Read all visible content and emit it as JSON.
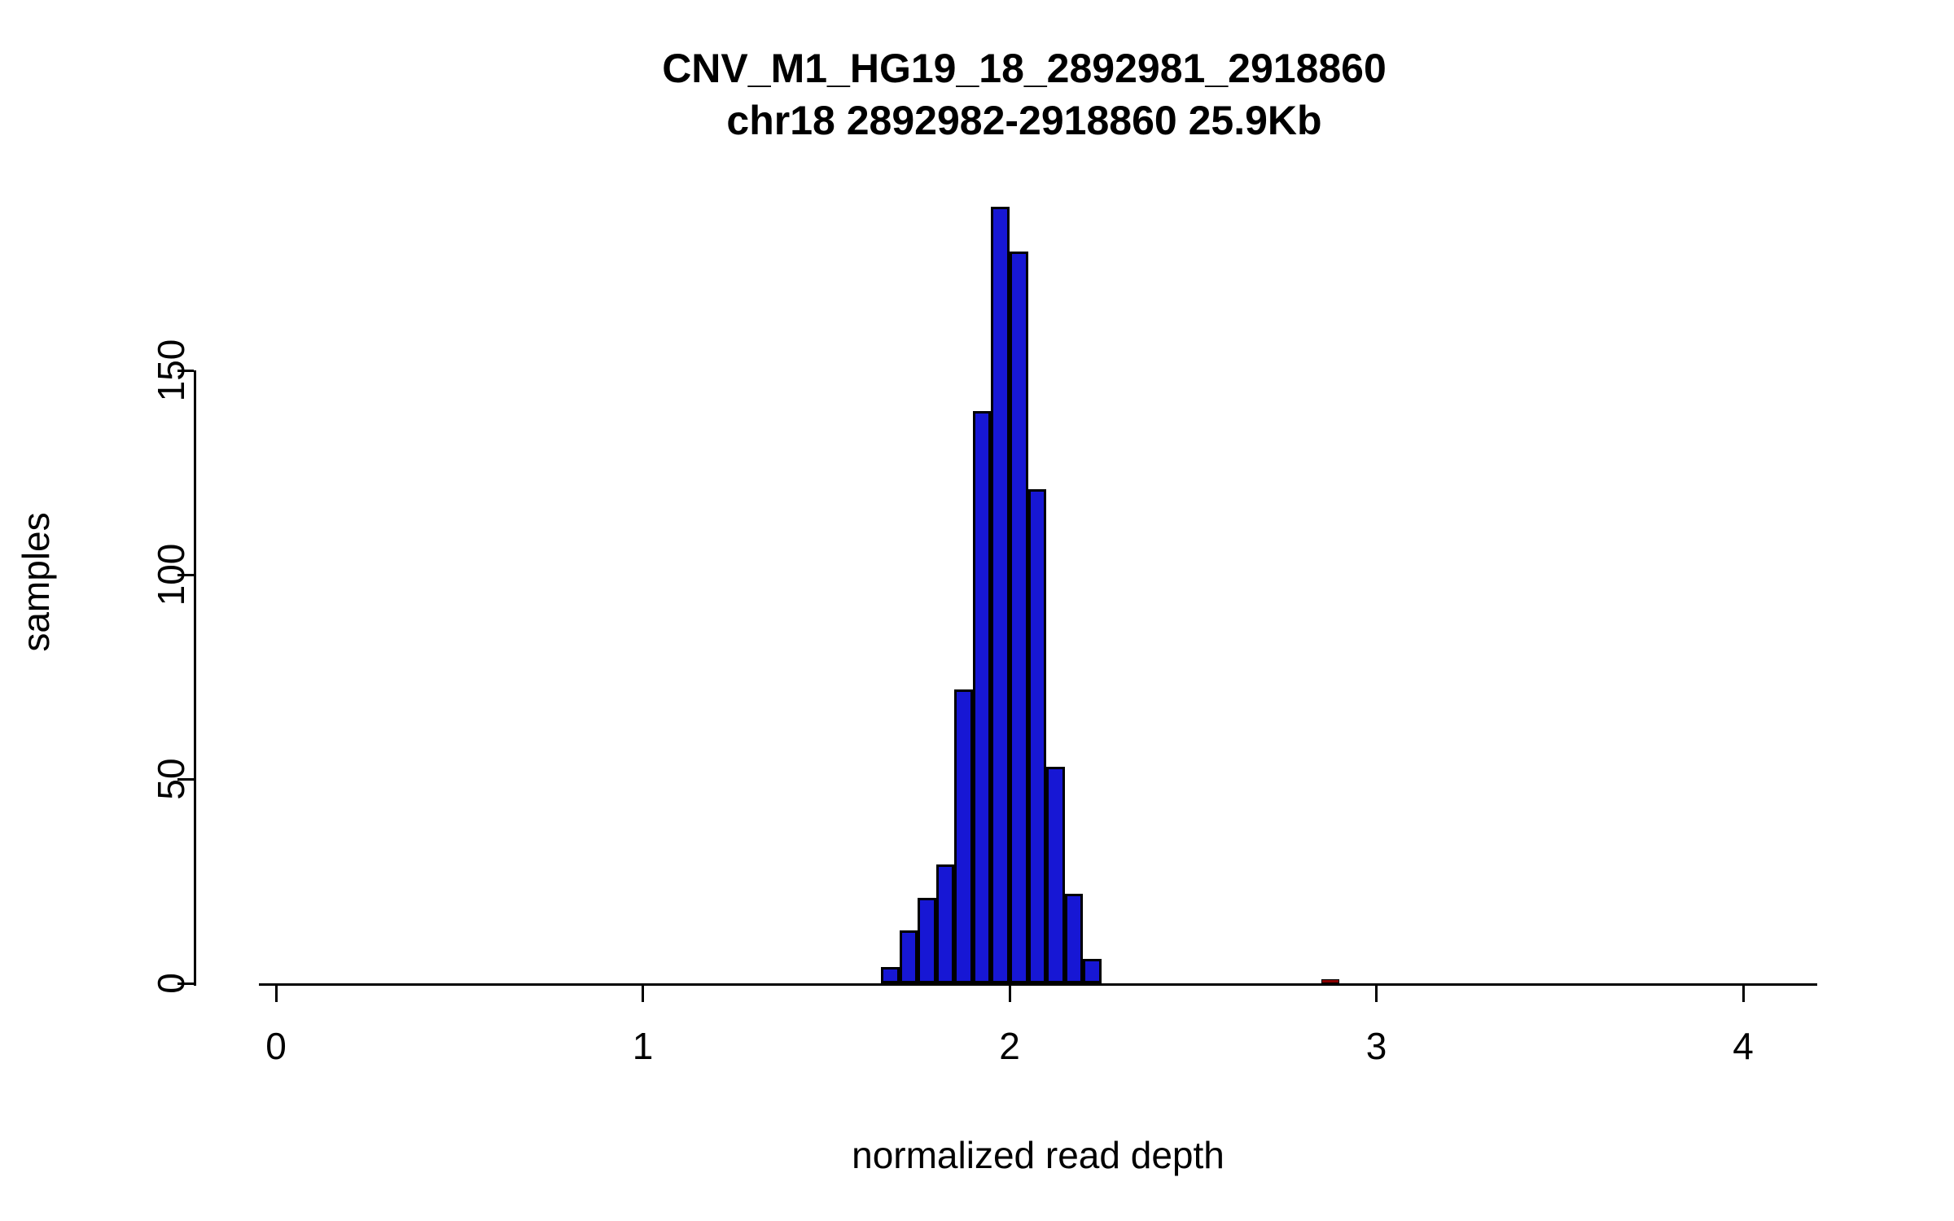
{
  "page": {
    "background": "#FFFFFF"
  },
  "chart_data": {
    "type": "bar",
    "subtype": "histogram",
    "title": "CNV_M1_HG19_18_2892981_2918860",
    "subtitle": "chr18 2892982-2918860 25.9Kb",
    "xlabel": "normalized read depth",
    "ylabel": "samples",
    "xlim": [
      -0.05,
      4.2
    ],
    "ylim": [
      0,
      192
    ],
    "x_ticks": [
      0,
      1,
      2,
      3,
      4
    ],
    "y_ticks": [
      0,
      50,
      100,
      150
    ],
    "grid": false,
    "legend": false,
    "bin_width": 0.05,
    "axis_color": "#000000",
    "bar_border": "#000000",
    "bar_fill": "#1717D4",
    "outlier_fill": "#8B0000",
    "bars": [
      {
        "x_start": 1.65,
        "count": 4,
        "color": "#1717D4"
      },
      {
        "x_start": 1.7,
        "count": 13,
        "color": "#1717D4"
      },
      {
        "x_start": 1.75,
        "count": 21,
        "color": "#1717D4"
      },
      {
        "x_start": 1.8,
        "count": 29,
        "color": "#1717D4"
      },
      {
        "x_start": 1.85,
        "count": 72,
        "color": "#1717D4"
      },
      {
        "x_start": 1.9,
        "count": 140,
        "color": "#1717D4"
      },
      {
        "x_start": 1.95,
        "count": 190,
        "color": "#1717D4"
      },
      {
        "x_start": 2.0,
        "count": 179,
        "color": "#1717D4"
      },
      {
        "x_start": 2.05,
        "count": 121,
        "color": "#1717D4"
      },
      {
        "x_start": 2.1,
        "count": 53,
        "color": "#1717D4"
      },
      {
        "x_start": 2.15,
        "count": 22,
        "color": "#1717D4"
      },
      {
        "x_start": 2.2,
        "count": 6,
        "color": "#1717D4"
      },
      {
        "x_start": 2.85,
        "count": 1,
        "color": "#8B0000"
      }
    ]
  }
}
